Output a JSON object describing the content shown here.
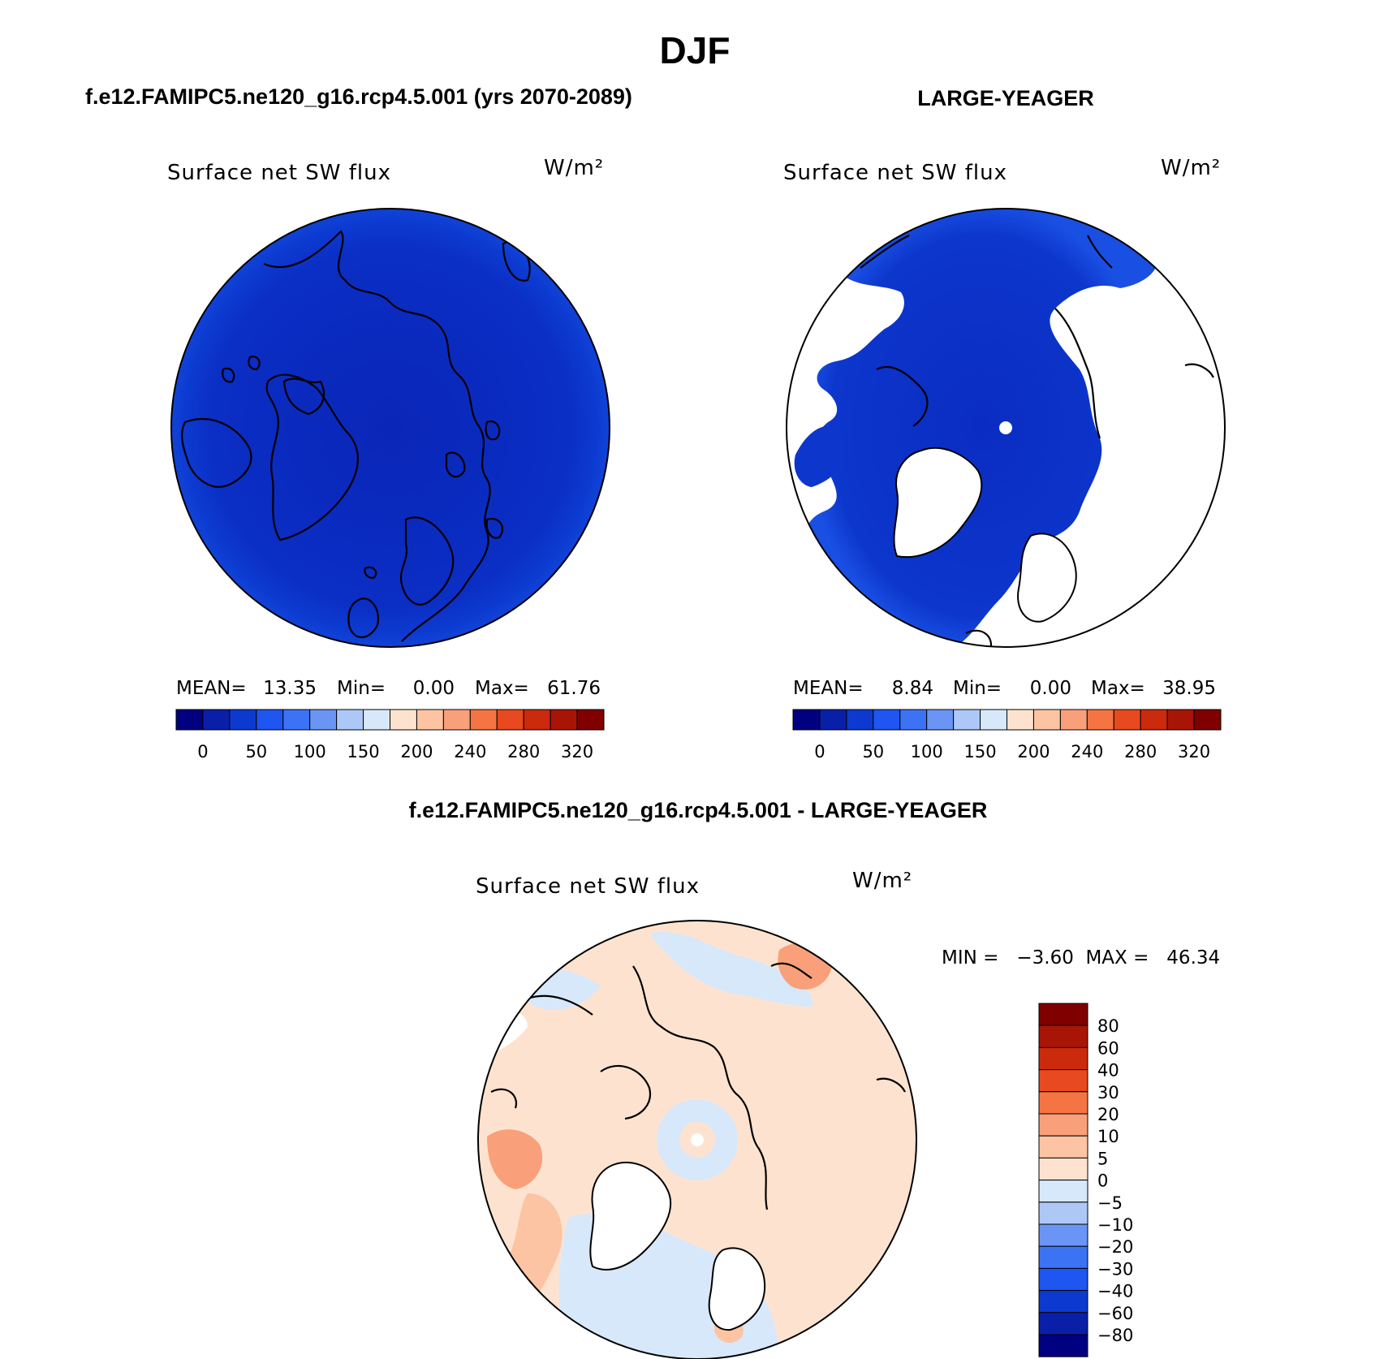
{
  "title": "DJF",
  "colors": {
    "scale": [
      "#000080",
      "#0a1fa8",
      "#0c3ad0",
      "#1f55f0",
      "#3c73f5",
      "#6a95f5",
      "#adc8f7",
      "#d8e8fb",
      "#fde3cf",
      "#fcc4a3",
      "#f9a07a",
      "#f57444",
      "#e8491e",
      "#cc2a0c",
      "#a81507",
      "#800000"
    ],
    "diff": [
      "#000080",
      "#0a1fa8",
      "#0c3ad0",
      "#1f55f0",
      "#3c73f5",
      "#6a95f5",
      "#adc8f7",
      "#d8e8fb",
      "#fde3cf",
      "#fcc4a3",
      "#f9a07a",
      "#f57444",
      "#e8491e",
      "#cc2a0c",
      "#a81507",
      "#800000"
    ],
    "map_dark": "#0b28c0",
    "map_mid": "#0c3ad0",
    "map_light": "#1f55f0",
    "land_line": "#000000"
  },
  "chart_data": [
    {
      "type": "heatmap",
      "projection": "north polar stereographic",
      "suptitle": "f.e12.FAMIPC5.ne120_g16.rcp4.5.001 (yrs 2070-2089)",
      "title": "Surface net SW flux",
      "units": "W/m²",
      "mean_label": "MEAN=",
      "mean": "13.35",
      "min_label": "Min=",
      "min": "0.00",
      "max_label": "Max=",
      "max": "61.76",
      "colorbar_ticks": [
        "0",
        "50",
        "100",
        "150",
        "200",
        "240",
        "280",
        "320"
      ],
      "colorbar_orientation": "horizontal"
    },
    {
      "type": "heatmap",
      "projection": "north polar stereographic",
      "suptitle": "LARGE-YEAGER",
      "title": "Surface net SW flux",
      "units": "W/m²",
      "mean_label": "MEAN=",
      "mean": "8.84",
      "min_label": "Min=",
      "min": "0.00",
      "max_label": "Max=",
      "max": "38.95",
      "colorbar_ticks": [
        "0",
        "50",
        "100",
        "150",
        "200",
        "240",
        "280",
        "320"
      ],
      "colorbar_orientation": "horizontal"
    },
    {
      "type": "heatmap",
      "projection": "north polar stereographic",
      "suptitle": "f.e12.FAMIPC5.ne120_g16.rcp4.5.001 - LARGE-YEAGER",
      "title": "Surface net SW flux",
      "units": "W/m²",
      "minmax_text": "MIN =   −3.60  MAX =   46.34",
      "colorbar_ticks": [
        "80",
        "60",
        "40",
        "30",
        "20",
        "10",
        "5",
        "0",
        "−5",
        "−10",
        "−20",
        "−30",
        "−40",
        "−60",
        "−80"
      ],
      "colorbar_orientation": "vertical"
    }
  ]
}
